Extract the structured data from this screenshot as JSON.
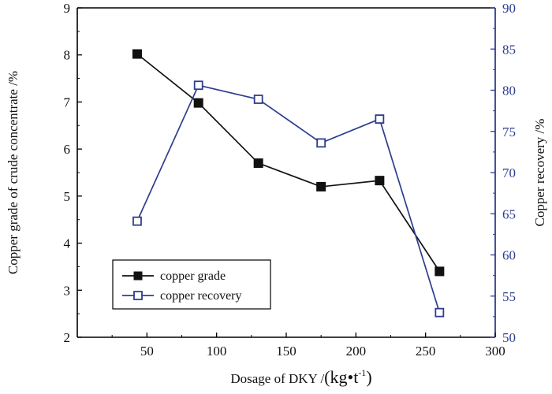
{
  "chart_data": {
    "type": "line",
    "x": [
      43,
      87,
      130,
      175,
      217,
      260
    ],
    "xlim": [
      0,
      300
    ],
    "xticks": [
      50,
      100,
      150,
      200,
      250,
      300
    ],
    "xlabel": "Dosage of DKY /",
    "xlabel_unit": "(kg•t",
    "xlabel_exp": "-1",
    "xlabel_close": ")",
    "ylabel_left": "Copper grade of crude concentrate /%",
    "ylabel_right": "Copper recovery /%",
    "ylim_left": [
      2,
      9
    ],
    "yticks_left": [
      2,
      3,
      4,
      5,
      6,
      7,
      8,
      9
    ],
    "ylim_right": [
      50,
      90
    ],
    "yticks_right": [
      50,
      55,
      60,
      65,
      70,
      75,
      80,
      85,
      90
    ],
    "series": [
      {
        "name": "copper grade",
        "axis": "left",
        "color": "#111111",
        "marker": "filled-square",
        "values": [
          8.02,
          6.98,
          5.7,
          5.2,
          5.33,
          3.4
        ]
      },
      {
        "name": "copper recovery",
        "axis": "right",
        "color": "#2e3d8f",
        "marker": "open-square",
        "values": [
          64.1,
          80.6,
          78.9,
          73.6,
          76.5,
          53.0
        ]
      }
    ],
    "legend": {
      "placement": "lower-left"
    }
  }
}
